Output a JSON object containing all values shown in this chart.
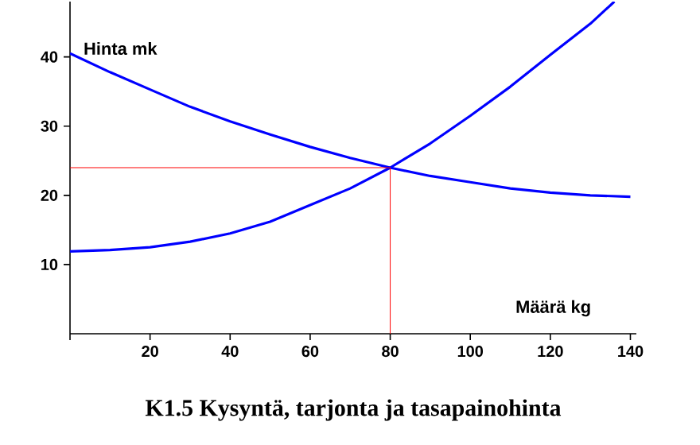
{
  "chart_data": {
    "type": "line",
    "title": "K1.5 Kysyntä, tarjonta ja tasapainohinta",
    "xlabel": "Määrä kg",
    "ylabel": "Hinta mk",
    "xlim": [
      0,
      141.5
    ],
    "ylim": [
      0,
      48
    ],
    "xticks": [
      {
        "value": 0,
        "label": null
      },
      20,
      40,
      60,
      80,
      100,
      120,
      140
    ],
    "yticks": [
      10,
      20,
      30,
      40
    ],
    "series": [
      {
        "color": "#0000ff",
        "x": [
          0,
          10,
          20,
          30,
          40,
          50,
          60,
          70,
          80,
          90,
          100,
          110,
          120,
          130,
          140
        ],
        "values": [
          40.5,
          37.8,
          35.3,
          32.8,
          30.7,
          28.8,
          27.0,
          25.4,
          24.0,
          22.8,
          21.9,
          21.0,
          20.4,
          20.0,
          19.8
        ]
      },
      {
        "color": "#0000ff",
        "x": [
          0,
          10,
          20,
          30,
          40,
          50,
          60,
          70,
          80,
          90,
          100,
          110,
          120,
          130,
          136
        ],
        "values": [
          11.9,
          12.1,
          12.5,
          13.3,
          14.5,
          16.2,
          18.6,
          21.0,
          24.0,
          27.5,
          31.5,
          35.7,
          40.3,
          44.8,
          48.0
        ]
      },
      {
        "color": "#ff0000",
        "x": [
          0,
          80,
          80
        ],
        "values": [
          24,
          24,
          0
        ]
      }
    ]
  }
}
